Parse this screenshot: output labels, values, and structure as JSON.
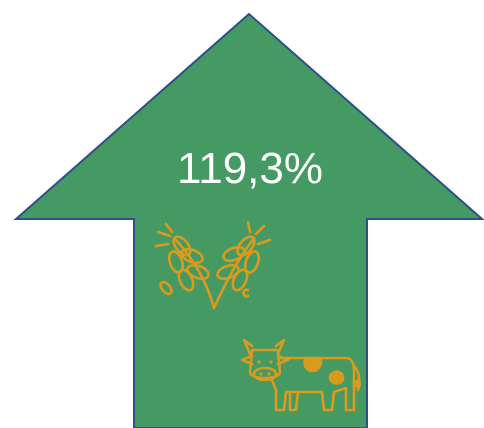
{
  "indicator": {
    "value_label": "119,3%",
    "direction": "up",
    "arrow_color": "#459a63",
    "arrow_outline_color": "#2f4f8a",
    "text_color": "#ffffff"
  },
  "icons": [
    {
      "name": "wheat-icon",
      "color": "#d99a1e"
    },
    {
      "name": "cow-icon",
      "color": "#d99a1e"
    }
  ]
}
